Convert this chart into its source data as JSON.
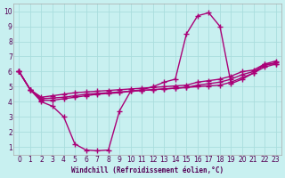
{
  "xlabel": "Windchill (Refroidissement éolien,°C)",
  "bg_color": "#c8f0f0",
  "line_color": "#aa0077",
  "grid_color": "#aadddd",
  "x_ticks": [
    0,
    1,
    2,
    3,
    4,
    5,
    6,
    7,
    8,
    9,
    10,
    11,
    12,
    13,
    14,
    15,
    16,
    17,
    18,
    19,
    20,
    21,
    22,
    23
  ],
  "y_ticks": [
    1,
    2,
    3,
    4,
    5,
    6,
    7,
    8,
    9,
    10
  ],
  "xlim": [
    -0.5,
    23.5
  ],
  "ylim": [
    0.5,
    10.5
  ],
  "line1_x": [
    0,
    1,
    2,
    3,
    4,
    5,
    6,
    7,
    8,
    9,
    10,
    11,
    12,
    13,
    14,
    15,
    16,
    17,
    18,
    19,
    20,
    21,
    22,
    23
  ],
  "line1_y": [
    6.0,
    4.8,
    4.0,
    3.7,
    3.0,
    1.2,
    0.8,
    0.75,
    0.8,
    3.4,
    4.7,
    4.8,
    5.0,
    5.3,
    5.5,
    8.5,
    9.7,
    9.9,
    9.0,
    5.2,
    5.5,
    5.9,
    6.5,
    6.5
  ],
  "line2_x": [
    0,
    1,
    2,
    3,
    4,
    5,
    6,
    7,
    8,
    9,
    10,
    11,
    12,
    13,
    14,
    15,
    16,
    17,
    18,
    19,
    20,
    21,
    22,
    23
  ],
  "line2_y": [
    6.0,
    4.8,
    4.1,
    4.1,
    4.2,
    4.3,
    4.4,
    4.5,
    4.55,
    4.6,
    4.7,
    4.75,
    4.8,
    4.85,
    4.9,
    4.95,
    5.0,
    5.05,
    5.1,
    5.3,
    5.6,
    5.9,
    6.3,
    6.5
  ],
  "line3_x": [
    0,
    1,
    2,
    3,
    4,
    5,
    6,
    7,
    8,
    9,
    10,
    11,
    12,
    13,
    14,
    15,
    16,
    17,
    18,
    19,
    20,
    21,
    22,
    23
  ],
  "line3_y": [
    6.0,
    4.8,
    4.2,
    4.25,
    4.3,
    4.4,
    4.5,
    4.55,
    4.6,
    4.65,
    4.7,
    4.75,
    4.8,
    4.85,
    4.9,
    4.95,
    5.1,
    5.2,
    5.3,
    5.5,
    5.8,
    6.0,
    6.4,
    6.6
  ],
  "line4_x": [
    0,
    1,
    2,
    3,
    4,
    5,
    6,
    7,
    8,
    9,
    10,
    11,
    12,
    13,
    14,
    15,
    16,
    17,
    18,
    19,
    20,
    21,
    22,
    23
  ],
  "line4_y": [
    6.0,
    4.8,
    4.3,
    4.4,
    4.5,
    4.6,
    4.65,
    4.7,
    4.75,
    4.8,
    4.85,
    4.9,
    4.95,
    5.0,
    5.05,
    5.1,
    5.3,
    5.4,
    5.5,
    5.7,
    6.0,
    6.1,
    6.5,
    6.7
  ]
}
